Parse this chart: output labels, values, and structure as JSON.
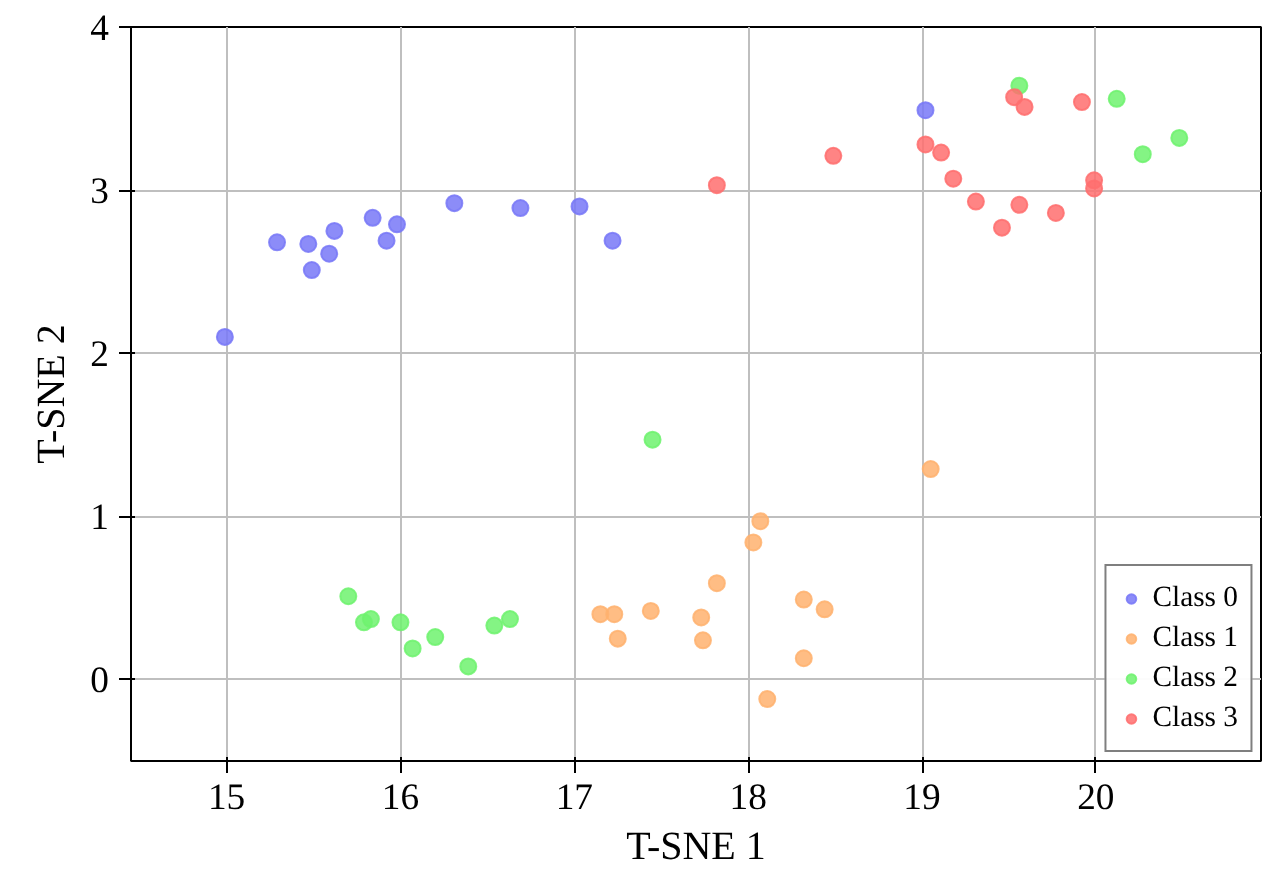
{
  "chart_data": {
    "type": "scatter",
    "xlabel": "T-SNE 1",
    "ylabel": "T-SNE 2",
    "xlim": [
      14.45,
      20.95
    ],
    "ylim": [
      -0.5,
      4
    ],
    "xticks": [
      15,
      16,
      17,
      18,
      19,
      20
    ],
    "yticks": [
      0,
      1,
      2,
      3,
      4
    ],
    "grid": true,
    "legend": "bottom right",
    "marker": "circle",
    "series": [
      {
        "name": "Class 0",
        "color": "#7878f7",
        "x": [
          14.99,
          15.29,
          15.47,
          15.49,
          15.59,
          15.62,
          15.84,
          15.92,
          15.98,
          16.31,
          16.69,
          17.03,
          17.22,
          19.02
        ],
        "values": [
          2.1,
          2.68,
          2.67,
          2.51,
          2.61,
          2.75,
          2.83,
          2.69,
          2.79,
          2.92,
          2.89,
          2.9,
          2.69,
          3.49
        ]
      },
      {
        "name": "Class 1",
        "color": "#ffb26e",
        "x": [
          19.05,
          18.07,
          18.03,
          17.82,
          17.15,
          17.23,
          17.25,
          17.44,
          17.73,
          17.74,
          18.32,
          18.44,
          18.32,
          18.11
        ],
        "values": [
          1.29,
          0.97,
          0.84,
          0.59,
          0.4,
          0.4,
          0.25,
          0.42,
          0.38,
          0.24,
          0.49,
          0.43,
          0.13,
          -0.12
        ]
      },
      {
        "name": "Class 2",
        "color": "#6ef26e",
        "x": [
          15.7,
          15.79,
          15.83,
          16.0,
          16.07,
          16.2,
          16.39,
          16.54,
          16.63,
          17.45,
          19.56,
          20.12,
          20.27,
          20.48
        ],
        "values": [
          0.51,
          0.35,
          0.37,
          0.35,
          0.19,
          0.26,
          0.08,
          0.33,
          0.37,
          1.47,
          3.64,
          3.56,
          3.22,
          3.32
        ]
      },
      {
        "name": "Class 3",
        "color": "#ff6e6e",
        "x": [
          17.82,
          18.49,
          19.02,
          19.11,
          19.18,
          19.31,
          19.46,
          19.56,
          19.77,
          19.99,
          19.99,
          19.53,
          19.59,
          19.92
        ],
        "values": [
          3.03,
          3.21,
          3.28,
          3.23,
          3.07,
          2.93,
          2.77,
          2.91,
          2.86,
          3.06,
          3.01,
          3.57,
          3.51,
          3.54
        ]
      }
    ]
  }
}
